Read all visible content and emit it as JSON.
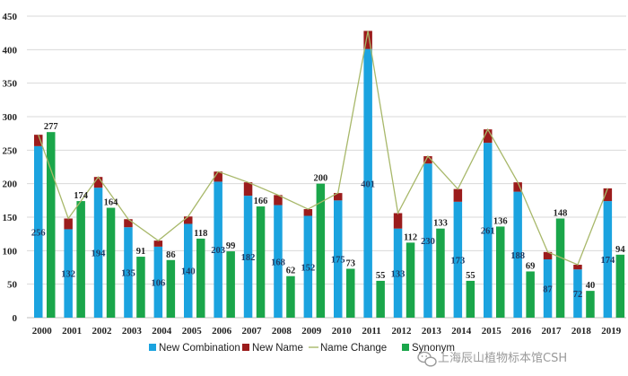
{
  "chart_data": {
    "type": "bar",
    "stacked_with_line": true,
    "categories": [
      "2000",
      "2001",
      "2002",
      "2003",
      "2004",
      "2005",
      "2006",
      "2007",
      "2008",
      "2009",
      "2010",
      "2011",
      "2012",
      "2013",
      "2014",
      "2015",
      "2016",
      "2017",
      "2018",
      "2019"
    ],
    "ylim": [
      0,
      450
    ],
    "yticks": [
      0,
      50,
      100,
      150,
      200,
      250,
      300,
      350,
      400,
      450
    ],
    "grid": true,
    "legend_position": "bottom",
    "series": [
      {
        "name": "New Combination",
        "kind": "stacked-bar",
        "color": "#1ba3df",
        "values": [
          256,
          132,
          194,
          135,
          106,
          140,
          203,
          182,
          168,
          152,
          175,
          401,
          133,
          230,
          173,
          261,
          188,
          87,
          72,
          174
        ]
      },
      {
        "name": "New Name",
        "kind": "stacked-bar",
        "color": "#9b1c1c",
        "values": [
          17,
          16,
          16,
          12,
          9,
          11,
          15,
          20,
          15,
          10,
          11,
          27,
          23,
          11,
          19,
          20,
          14,
          11,
          7,
          19
        ]
      },
      {
        "name": "Name Change",
        "kind": "line",
        "color": "#a8b86a",
        "values": [
          273,
          148,
          210,
          147,
          115,
          151,
          218,
          202,
          183,
          162,
          186,
          428,
          156,
          241,
          192,
          281,
          202,
          98,
          79,
          193
        ]
      },
      {
        "name": "Synonym",
        "kind": "bar",
        "color": "#1aa64a",
        "values": [
          277,
          174,
          164,
          91,
          86,
          118,
          99,
          166,
          62,
          200,
          73,
          55,
          112,
          133,
          55,
          136,
          69,
          148,
          40,
          94
        ]
      }
    ]
  },
  "watermark": "上海辰山植物标本馆CSH",
  "watermark_icon": "wechat-icon"
}
